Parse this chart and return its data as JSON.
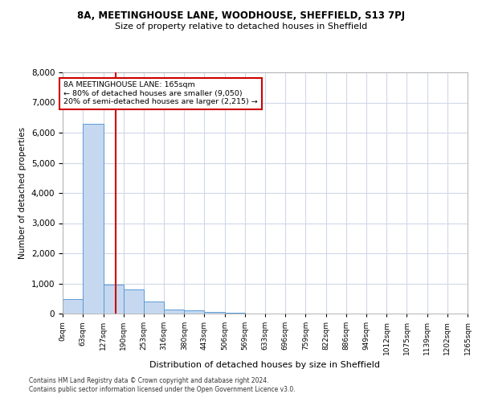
{
  "title": "8A, MEETINGHOUSE LANE, WOODHOUSE, SHEFFIELD, S13 7PJ",
  "subtitle": "Size of property relative to detached houses in Sheffield",
  "xlabel": "Distribution of detached houses by size in Sheffield",
  "ylabel": "Number of detached properties",
  "footnote1": "Contains HM Land Registry data © Crown copyright and database right 2024.",
  "footnote2": "Contains public sector information licensed under the Open Government Licence v3.0.",
  "annotation_line1": "8A MEETINGHOUSE LANE: 165sqm",
  "annotation_line2": "← 80% of detached houses are smaller (9,050)",
  "annotation_line3": "20% of semi-detached houses are larger (2,215) →",
  "property_size": 165,
  "bar_edges": [
    0,
    63,
    127,
    190,
    253,
    316,
    380,
    443,
    506,
    569,
    633,
    696,
    759,
    822,
    886,
    949,
    1012,
    1075,
    1139,
    1202,
    1265
  ],
  "bar_heights": [
    490,
    6300,
    950,
    790,
    390,
    145,
    100,
    50,
    20,
    8,
    3,
    2,
    1,
    1,
    1,
    1,
    0,
    0,
    0,
    0
  ],
  "bar_color": "#c5d8f0",
  "bar_edge_color": "#5b9bd5",
  "red_line_color": "#cc0000",
  "annotation_box_color": "#cc0000",
  "grid_color": "#d0d8e8",
  "background_color": "#ffffff",
  "ylim": [
    0,
    8000
  ],
  "yticks": [
    0,
    1000,
    2000,
    3000,
    4000,
    5000,
    6000,
    7000,
    8000
  ]
}
